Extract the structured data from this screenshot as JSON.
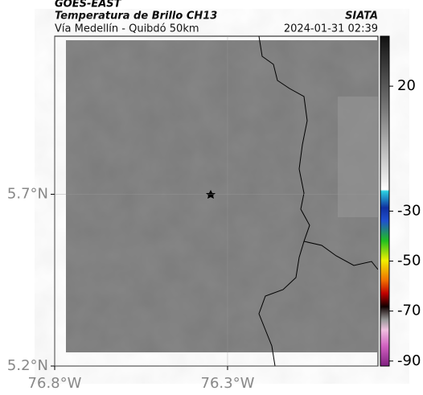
{
  "header": {
    "source": "GOES-EAST",
    "product": "Temperatura de Brillo CH13",
    "region": "Vía Medellín - Quibdó 50km",
    "org": "SIATA",
    "datetime": "2024-01-31 02:39"
  },
  "map": {
    "latlim": [
      5.2,
      6.16
    ],
    "lonlim": [
      -76.8,
      -75.865
    ],
    "latticks": [
      {
        "value": 5.2,
        "label": "5.2°N"
      },
      {
        "value": 5.7,
        "label": "5.7°N"
      }
    ],
    "lonticks": [
      {
        "value": -76.8,
        "label": "76.8°W"
      },
      {
        "value": -76.3,
        "label": "76.3°W"
      }
    ]
  },
  "colorbar": {
    "lim": [
      40,
      -92
    ],
    "ticks": [
      20,
      -30,
      -50,
      -70,
      -90
    ]
  }
}
